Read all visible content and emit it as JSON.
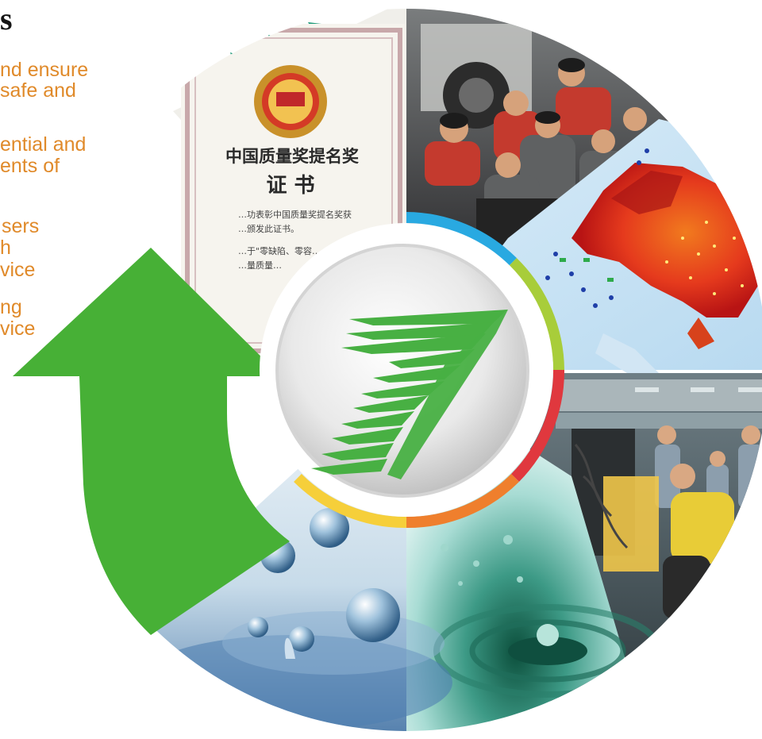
{
  "heading": {
    "title": "s"
  },
  "copy_lines": [
    "nd ensure",
    " safe and",
    "ential and",
    "ents of",
    "sers",
    "h",
    "vice",
    "ng",
    "vice"
  ],
  "certificate": {
    "title_line_1": "中国质量奖提名奖",
    "title_line_2": "证 书",
    "body_line_1": "…功表彰中国质量奖提名奖获",
    "body_line_2": "…颁发此证书。",
    "body_line_3": "…于\"零缺陷、零容…",
    "body_line_4": "…量质量…"
  },
  "ring_colors": {
    "blue": "#29a9e1",
    "lime": "#a8cd3a",
    "red": "#e0383e",
    "orange": "#ef7f2d",
    "yellow": "#f6cf3a",
    "arrow_green": "#47b036",
    "logo_green": "#48b043",
    "triangles": "#1d9a78"
  },
  "icons": {
    "logo": "stylized-seven-logo",
    "arrow": "up-arrow-icon"
  }
}
